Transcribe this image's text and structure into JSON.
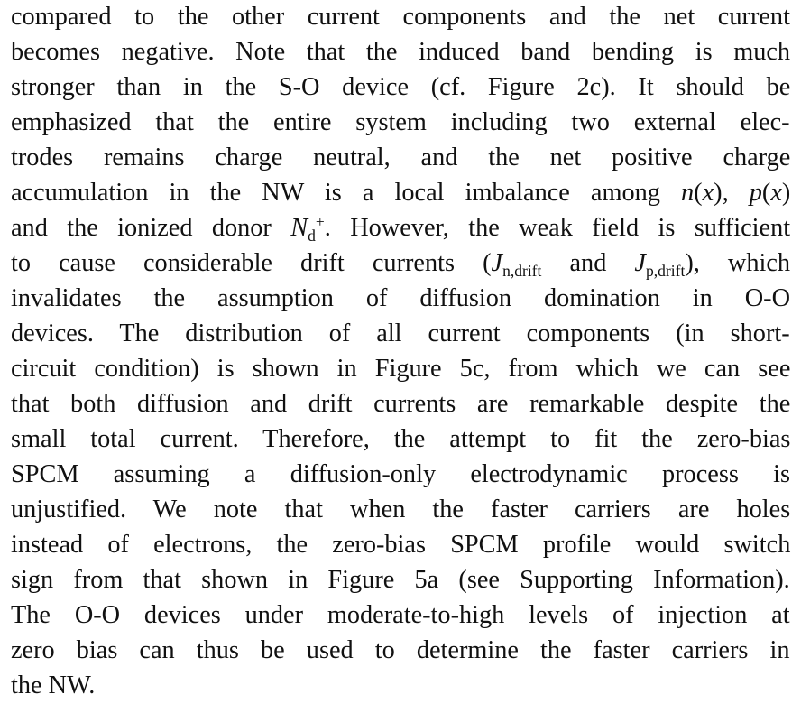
{
  "paragraph": {
    "lines": [
      "compared to the other current components and the net current",
      "becomes negative. Note that the induced band bending is much",
      "stronger than in the S-O device (cf. Figure 2c). It should be",
      "emphasized that the entire system including two external elec-",
      "trodes remains charge neutral, and the net positive charge",
      "accumulation in the NW is a local imbalance among n(x), p(x)",
      "and the ionized donor Nd+. However, the weak field is sufficient",
      "to cause considerable drift currents (Jn,drift and Jp,drift), which",
      "invalidates the assumption of diffusion domination in O-O",
      "devices. The distribution of all current components (in short-",
      "circuit condition) is shown in Figure 5c, from which we can see",
      "that both diffusion and drift currents are remarkable despite the",
      "small total current. Therefore, the attempt to fit the zero-bias",
      "SPCM assuming a diffusion-only electrodynamic process is",
      "unjustified. We note that when the faster carriers are holes",
      "instead of electrons, the zero-bias SPCM profile would switch",
      "sign from that shown in Figure 5a (see Supporting Information).",
      "The O-O devices under moderate-to-high levels of injection at",
      "zero bias can thus be used to determine the faster carriers in",
      "the NW."
    ],
    "segments": {
      "l6_a": "accumulation in the NW is a local imbalance among ",
      "l6_n": "n",
      "l6_b": "(",
      "l6_x1": "x",
      "l6_c": "), ",
      "l6_p": "p",
      "l6_d": "(",
      "l6_x2": "x",
      "l6_e": ")",
      "l7_a": "and the ionized donor ",
      "l7_N": "N",
      "l7_sub": "d",
      "l7_sup": "+",
      "l7_b": ". However, the weak field is sufficient",
      "l8_a": "to cause considerable drift currents (",
      "l8_J1": "J",
      "l8_sub1": "n,drift",
      "l8_b": " and ",
      "l8_J2": "J",
      "l8_sub2": "p,drift",
      "l8_c": "), which"
    }
  }
}
